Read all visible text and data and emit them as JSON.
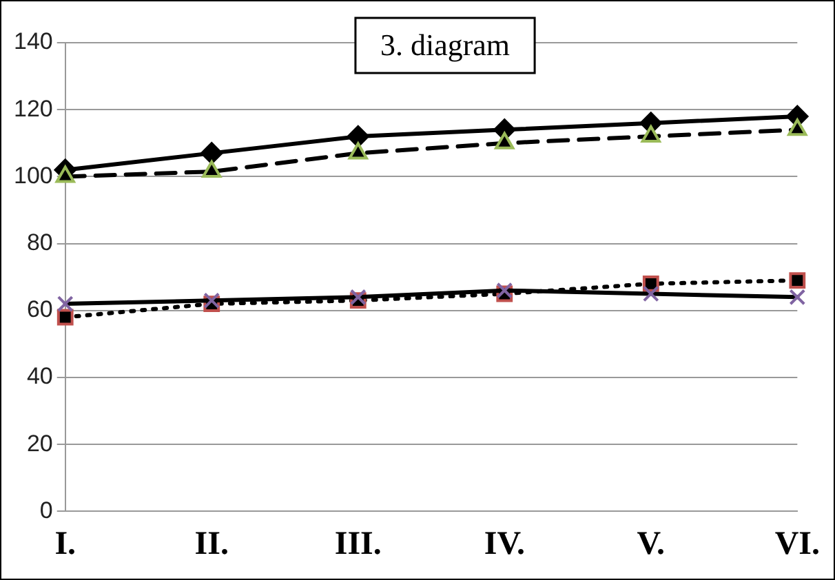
{
  "chart_data": {
    "type": "line",
    "title": "3. diagram",
    "categories": [
      "I.",
      "II.",
      "III.",
      "IV.",
      "V.",
      "VI."
    ],
    "series": [
      {
        "color": "#000000",
        "marker": "diamond",
        "line_style": "solid",
        "values": [
          102,
          107,
          112,
          114,
          116,
          118
        ]
      },
      {
        "color": "#9bbb59",
        "marker": "triangle",
        "line_style": "dashed",
        "values": [
          100,
          101.5,
          107,
          110,
          112,
          114
        ]
      },
      {
        "color": "#c0504d",
        "marker": "square",
        "line_style": "dotted",
        "values": [
          58,
          62,
          63,
          65,
          68,
          69
        ]
      },
      {
        "color": "#8064a2",
        "marker": "cross",
        "line_style": "solid",
        "values": [
          62,
          63,
          64,
          66,
          65,
          64
        ]
      }
    ],
    "ylim": [
      0,
      140
    ],
    "yticks": [
      0,
      20,
      40,
      60,
      80,
      100,
      120,
      140
    ],
    "grid": "y",
    "legend": false
  }
}
